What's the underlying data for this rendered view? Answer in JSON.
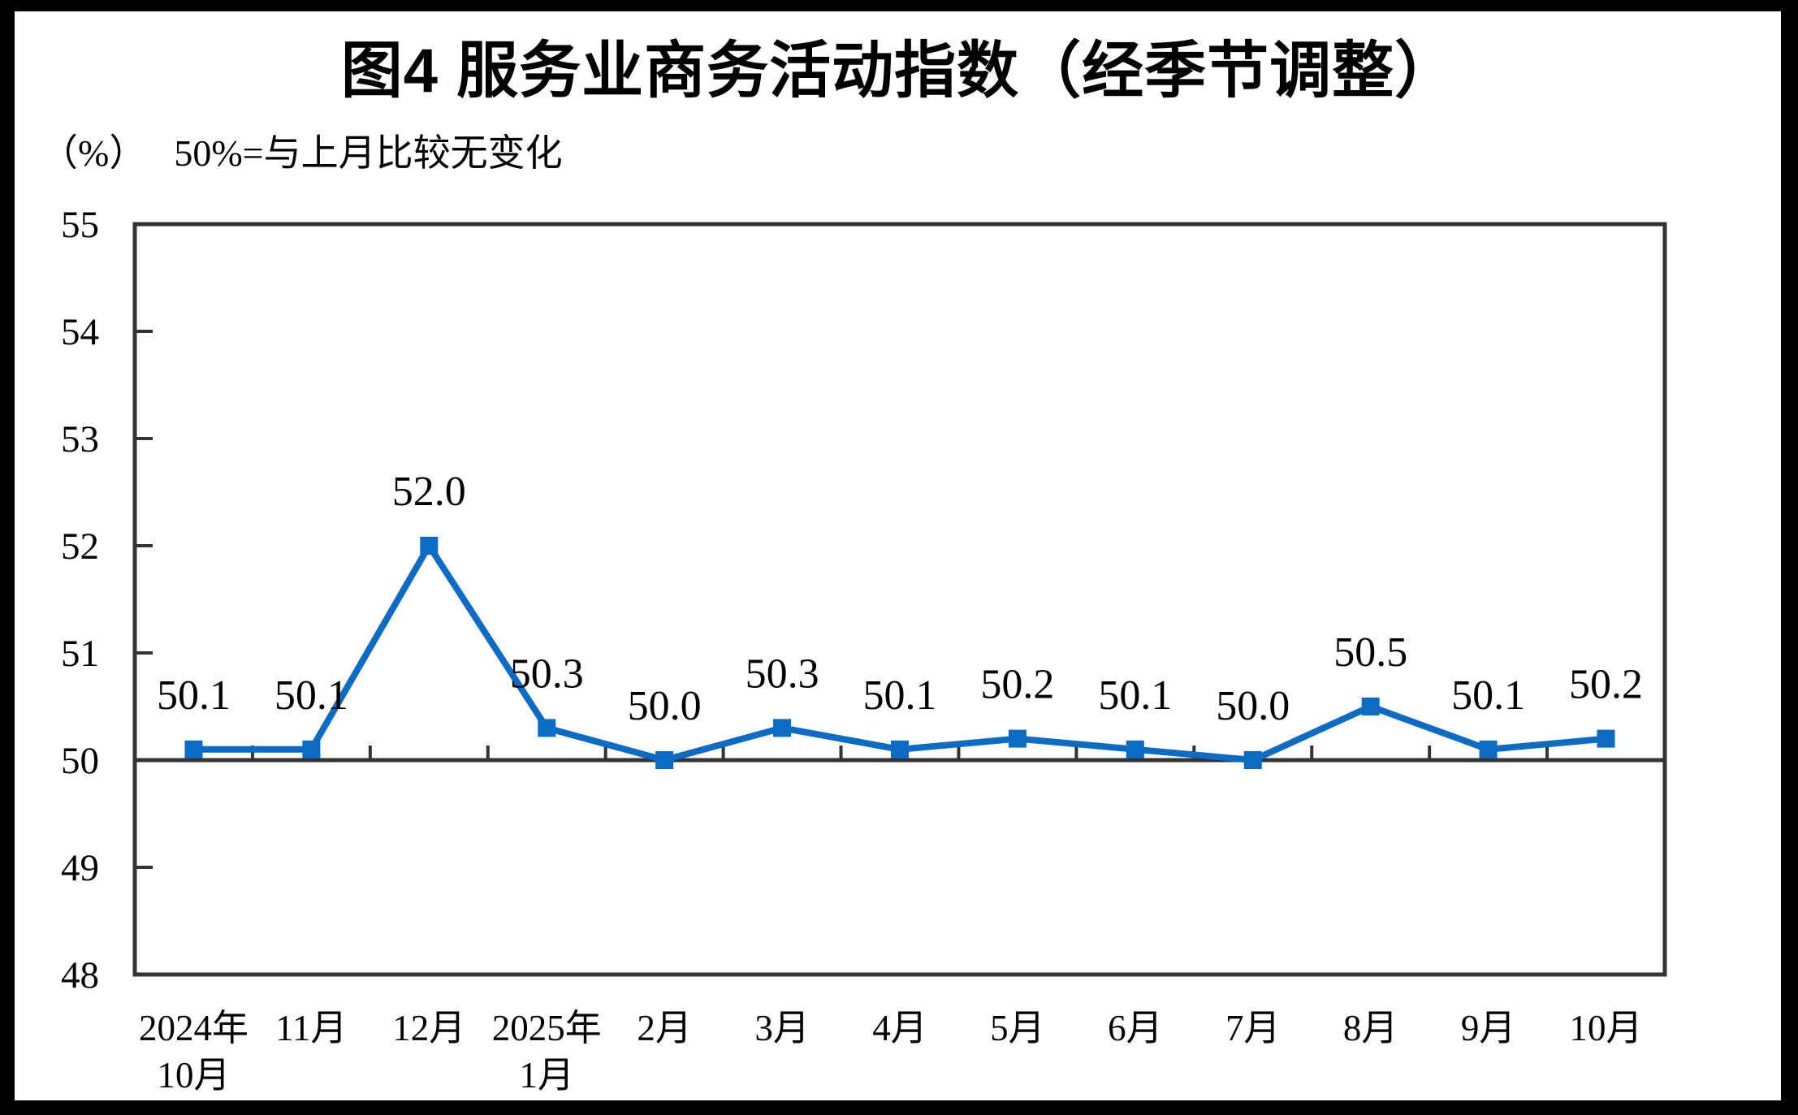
{
  "title": "图4 服务业商务活动指数（经季节调整）",
  "subtitle": {
    "unit_label": "（%）",
    "note": "50%=与上月比较无变化"
  },
  "chart_data": {
    "type": "line",
    "title": "图4 服务业商务活动指数（经季节调整）",
    "categories": [
      "2024年\n10月",
      "11月",
      "12月",
      "2025年\n1月",
      "2月",
      "3月",
      "4月",
      "5月",
      "6月",
      "7月",
      "8月",
      "9月",
      "10月"
    ],
    "values": [
      50.1,
      50.1,
      52.0,
      50.3,
      50.0,
      50.3,
      50.1,
      50.2,
      50.1,
      50.0,
      50.5,
      50.1,
      50.2
    ],
    "data_labels": [
      "50.1",
      "50.1",
      "52.0",
      "50.3",
      "50.0",
      "50.3",
      "50.1",
      "50.2",
      "50.1",
      "50.0",
      "50.5",
      "50.1",
      "50.2"
    ],
    "ylabel": "（%）",
    "ylim": [
      48,
      55
    ],
    "yticks": [
      55,
      54,
      53,
      52,
      51,
      50,
      49,
      48
    ],
    "baseline_value": 50,
    "grid": false,
    "legend": "none",
    "marker": "square",
    "colors": {
      "line": "#0B6BC5",
      "marker": "#0B6BC5",
      "axis": "#333333",
      "label_text": "#000000"
    }
  }
}
